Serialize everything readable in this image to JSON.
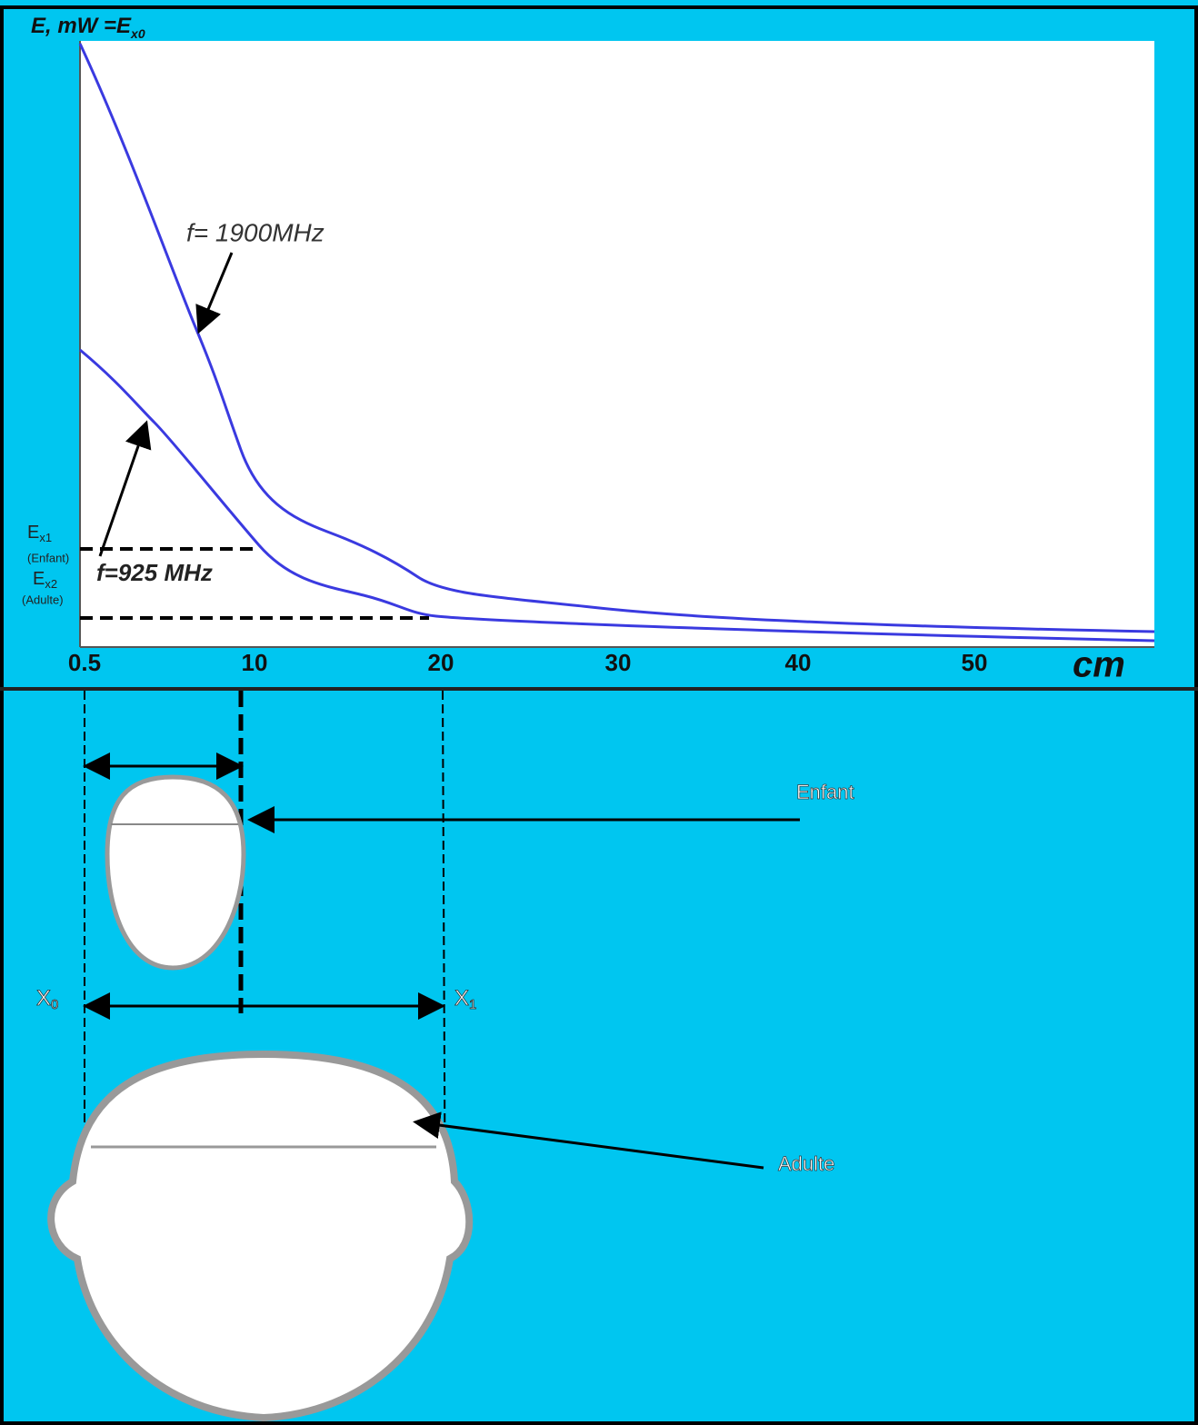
{
  "chart": {
    "y_axis_label": "E, mW =E",
    "y_axis_label_sub": "x0",
    "x_ticks": [
      0.5,
      10,
      20,
      30,
      40,
      50
    ],
    "x_unit": "cm",
    "curves": [
      {
        "label": "f= 1900MHz"
      },
      {
        "label": "f=925 MHz"
      }
    ],
    "levels": [
      {
        "label": "E",
        "sub": "x1",
        "note": "(Enfant)"
      },
      {
        "label": "E",
        "sub": "x2",
        "note": "(Adulte)"
      }
    ]
  },
  "heads": {
    "child_label": "Enfant",
    "adult_label": "Adulte",
    "x0": "X",
    "x0_sub": "0",
    "x1": "X",
    "x1_sub": "1"
  }
}
